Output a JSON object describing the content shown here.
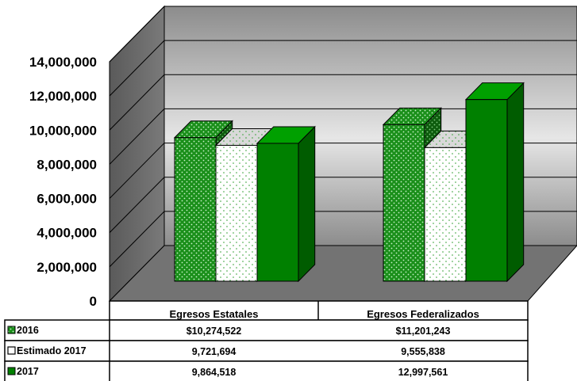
{
  "chart_data": {
    "type": "bar",
    "categories": [
      "Egresos Estatales",
      "Egresos Federalizados"
    ],
    "series": [
      {
        "name": "2016",
        "values": [
          10274522,
          11201243
        ],
        "display": [
          "$10,274,522",
          "$11,201,243"
        ],
        "color": "#1a8f1a",
        "pattern": "dots-on-green"
      },
      {
        "name": "Estimado 2017",
        "values": [
          9721694,
          9555838
        ],
        "display": [
          "9,721,694",
          "9,555,838"
        ],
        "color": "#ffffff",
        "pattern": "dots-on-white"
      },
      {
        "name": "2017",
        "values": [
          9864518,
          12997561
        ],
        "display": [
          "9,864,518",
          "12,997,561"
        ],
        "color": "#008000",
        "pattern": "solid"
      }
    ],
    "yticks": [
      "0",
      "2,000,000",
      "4,000,000",
      "6,000,000",
      "8,000,000",
      "10,000,000",
      "12,000,000",
      "14,000,000"
    ],
    "ylim": [
      0,
      14000000
    ],
    "title": "",
    "xlabel": "",
    "ylabel": "",
    "data_table": true,
    "grid": true
  }
}
